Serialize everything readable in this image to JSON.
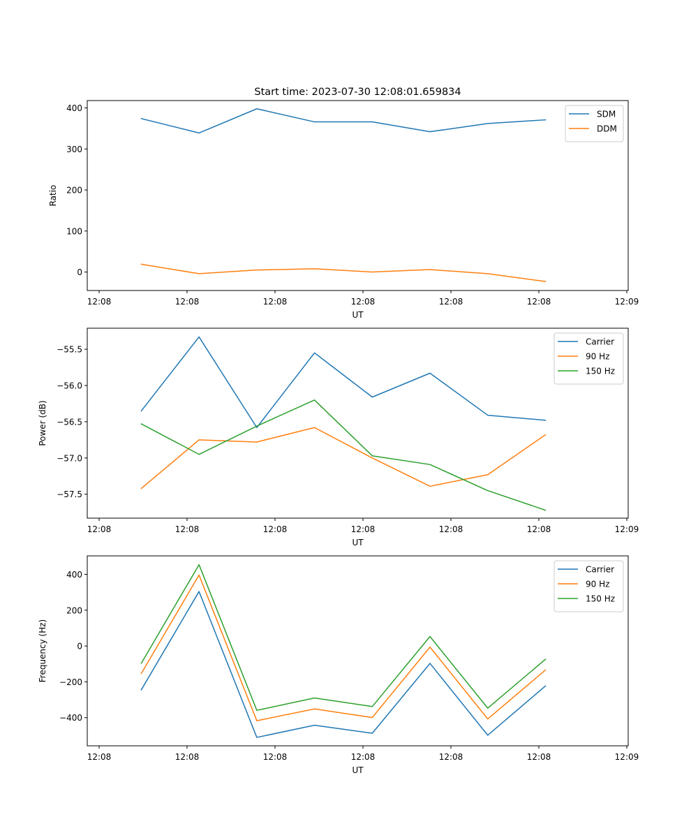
{
  "figure": {
    "title": "Start time: 2023-07-30 12:08:01.659834"
  },
  "chart_data": [
    {
      "type": "line",
      "id": "ratio",
      "title": "Start time: 2023-07-30 12:08:01.659834",
      "xlabel": "UT",
      "ylabel": "Ratio",
      "x_units": "seconds after 12:08:00",
      "x": [
        4.8,
        11.36,
        17.93,
        24.49,
        31.06,
        37.62,
        44.19,
        50.75
      ],
      "xlim": [
        -1.35,
        60.16
      ],
      "xticks": [
        0,
        10,
        20,
        30,
        40,
        50,
        60
      ],
      "xtick_labels": [
        "12:08",
        "12:08",
        "12:08",
        "12:08",
        "12:08",
        "12:08",
        "12:09"
      ],
      "ylim": [
        -45,
        418
      ],
      "yticks": [
        0,
        100,
        200,
        300,
        400
      ],
      "ytick_labels": [
        "0",
        "100",
        "200",
        "300",
        "400"
      ],
      "grid": false,
      "legend": "top-right",
      "series": [
        {
          "name": "SDM",
          "color": "#1f77b4",
          "values": [
            374,
            339,
            398,
            366,
            366,
            342,
            362,
            371
          ]
        },
        {
          "name": "DDM",
          "color": "#ff7f0e",
          "values": [
            19,
            -4,
            5,
            8,
            0,
            6,
            -4,
            -23
          ]
        }
      ]
    },
    {
      "type": "line",
      "id": "power",
      "title": "",
      "xlabel": "UT",
      "ylabel": "Power (dB)",
      "x_units": "seconds after 12:08:00",
      "x": [
        4.8,
        11.36,
        17.93,
        24.49,
        31.06,
        37.62,
        44.19,
        50.75
      ],
      "xlim": [
        -1.35,
        60.16
      ],
      "xticks": [
        0,
        10,
        20,
        30,
        40,
        50,
        60
      ],
      "xtick_labels": [
        "12:08",
        "12:08",
        "12:08",
        "12:08",
        "12:08",
        "12:08",
        "12:09"
      ],
      "ylim": [
        -57.83,
        -55.21
      ],
      "yticks": [
        -55.5,
        -56.0,
        -56.5,
        -57.0,
        -57.5
      ],
      "ytick_labels": [
        "−55.5",
        "−56.0",
        "−56.5",
        "−57.0",
        "−57.5"
      ],
      "grid": false,
      "legend": "top-right",
      "series": [
        {
          "name": "Carrier",
          "color": "#1f77b4",
          "values": [
            -56.35,
            -55.33,
            -56.58,
            -55.55,
            -56.16,
            -55.83,
            -56.41,
            -56.48
          ]
        },
        {
          "name": "90 Hz",
          "color": "#ff7f0e",
          "values": [
            -57.42,
            -56.75,
            -56.78,
            -56.58,
            -57.0,
            -57.39,
            -57.23,
            -56.68
          ]
        },
        {
          "name": "150 Hz",
          "color": "#2ca02c",
          "values": [
            -56.53,
            -56.95,
            -56.56,
            -56.2,
            -56.97,
            -57.09,
            -57.45,
            -57.72
          ]
        }
      ]
    },
    {
      "type": "line",
      "id": "frequency",
      "title": "",
      "xlabel": "UT",
      "ylabel": "Frequency (Hz)",
      "x_units": "seconds after 12:08:00",
      "x": [
        4.8,
        11.36,
        17.93,
        24.49,
        31.06,
        37.62,
        44.19,
        50.75
      ],
      "xlim": [
        -1.35,
        60.16
      ],
      "xticks": [
        0,
        10,
        20,
        30,
        40,
        50,
        60
      ],
      "xtick_labels": [
        "12:08",
        "12:08",
        "12:08",
        "12:08",
        "12:08",
        "12:08",
        "12:09"
      ],
      "ylim": [
        -557,
        503
      ],
      "yticks": [
        400,
        200,
        0,
        -200,
        -400
      ],
      "ytick_labels": [
        "400",
        "200",
        "0",
        "−200",
        "−400"
      ],
      "grid": false,
      "legend": "top-right",
      "series": [
        {
          "name": "Carrier",
          "color": "#1f77b4",
          "values": [
            -244,
            304,
            -510,
            -442,
            -487,
            -97,
            -498,
            -223
          ]
        },
        {
          "name": "90 Hz",
          "color": "#ff7f0e",
          "values": [
            -153,
            396,
            -417,
            -351,
            -399,
            -6,
            -407,
            -134
          ]
        },
        {
          "name": "150 Hz",
          "color": "#2ca02c",
          "values": [
            -96,
            454,
            -359,
            -290,
            -338,
            53,
            -347,
            -74
          ]
        }
      ]
    }
  ]
}
